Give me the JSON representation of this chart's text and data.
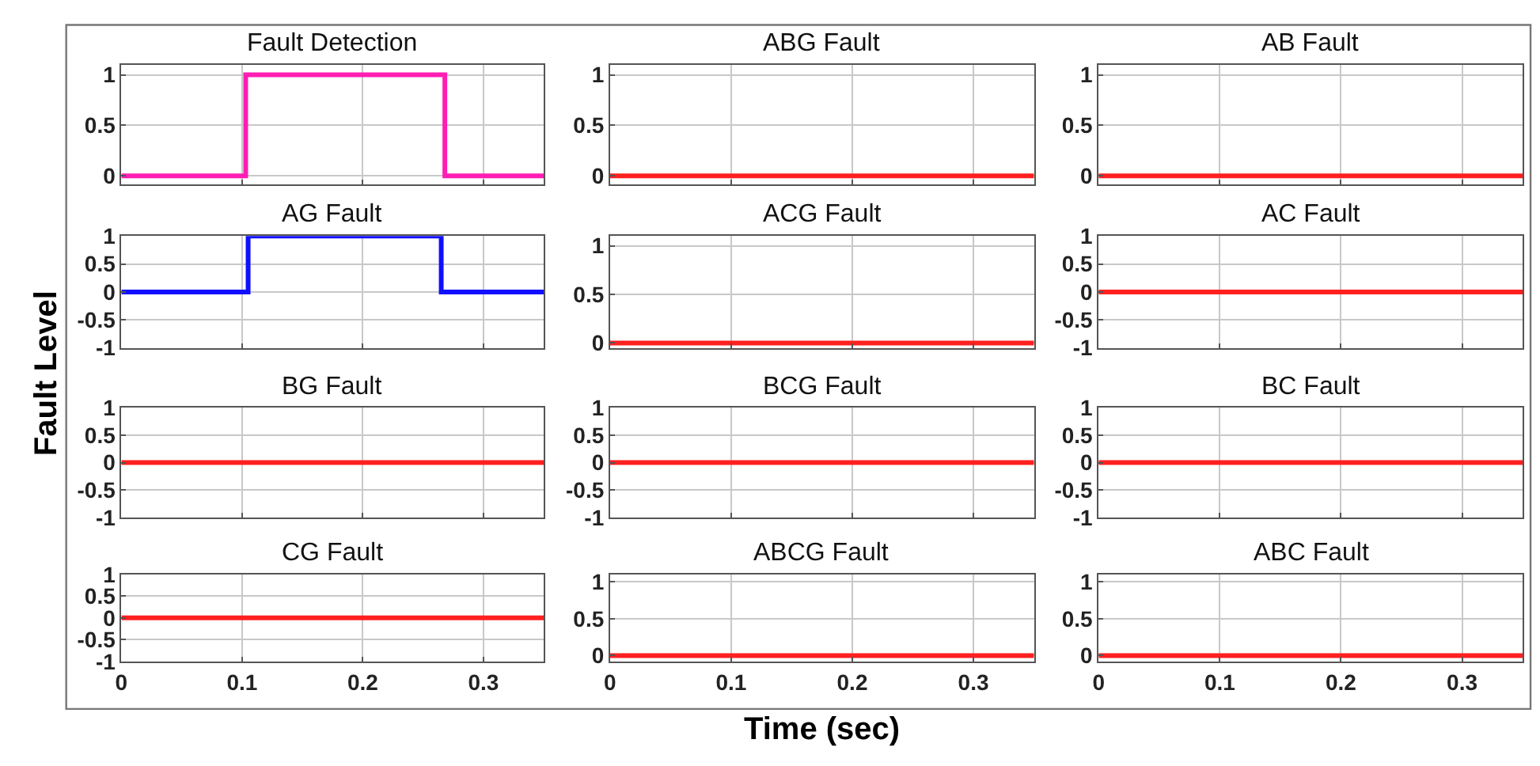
{
  "chart_data": [
    {
      "type": "step",
      "title": "Fault Detection",
      "xlim": [
        0,
        0.35
      ],
      "xticks": [
        0,
        0.1,
        0.2,
        0.3
      ],
      "ylim": [
        -0.08,
        1.1
      ],
      "yticks": [
        0,
        0.5,
        1
      ],
      "grid": true,
      "tick_labels": "y",
      "series": [
        {
          "color": "#ff1eb4",
          "x": [
            0,
            0.103,
            0.268,
            0.35
          ],
          "values": [
            0,
            1,
            0,
            0
          ]
        }
      ]
    },
    {
      "type": "step",
      "title": "ABG Fault",
      "xlim": [
        0,
        0.35
      ],
      "xticks": [
        0,
        0.1,
        0.2,
        0.3
      ],
      "ylim": [
        -0.08,
        1.1
      ],
      "yticks": [
        0,
        0.5,
        1
      ],
      "grid": true,
      "tick_labels": "y",
      "series": [
        {
          "color": "#ff2020",
          "x": [
            0,
            0.35
          ],
          "values": [
            0,
            0
          ]
        }
      ]
    },
    {
      "type": "step",
      "title": "AB Fault",
      "xlim": [
        0,
        0.35
      ],
      "xticks": [
        0,
        0.1,
        0.2,
        0.3
      ],
      "ylim": [
        -0.08,
        1.1
      ],
      "yticks": [
        0,
        0.5,
        1
      ],
      "grid": true,
      "tick_labels": "y",
      "series": [
        {
          "color": "#ff2020",
          "x": [
            0,
            0.35
          ],
          "values": [
            0,
            0
          ]
        }
      ]
    },
    {
      "type": "step",
      "title": "AG Fault",
      "ylabel": "Fault Level",
      "xlim": [
        0,
        0.35
      ],
      "xticks": [
        0,
        0.1,
        0.2,
        0.3
      ],
      "ylim": [
        -1,
        1
      ],
      "yticks": [
        -1,
        -0.5,
        0,
        0.5,
        1
      ],
      "grid": true,
      "tick_labels": "y",
      "series": [
        {
          "color": "#1010ff",
          "x": [
            0,
            0.105,
            0.265,
            0.35
          ],
          "values": [
            0,
            1,
            0,
            0
          ]
        }
      ]
    },
    {
      "type": "step",
      "title": "ACG Fault",
      "xlim": [
        0,
        0.35
      ],
      "xticks": [
        0,
        0.1,
        0.2,
        0.3
      ],
      "ylim": [
        -0.05,
        1.1
      ],
      "yticks": [
        0,
        0.5,
        1
      ],
      "grid": true,
      "tick_labels": "y",
      "series": [
        {
          "color": "#ff2020",
          "x": [
            0,
            0.35
          ],
          "values": [
            0,
            0
          ]
        }
      ]
    },
    {
      "type": "step",
      "title": "AC Fault",
      "xlim": [
        0,
        0.35
      ],
      "xticks": [
        0,
        0.1,
        0.2,
        0.3
      ],
      "ylim": [
        -1,
        1
      ],
      "yticks": [
        -1,
        -0.5,
        0,
        0.5,
        1
      ],
      "grid": true,
      "tick_labels": "y",
      "series": [
        {
          "color": "#ff2020",
          "x": [
            0,
            0.35
          ],
          "values": [
            0,
            0
          ]
        }
      ]
    },
    {
      "type": "step",
      "title": "BG Fault",
      "xlim": [
        0,
        0.35
      ],
      "xticks": [
        0,
        0.1,
        0.2,
        0.3
      ],
      "ylim": [
        -1,
        1
      ],
      "yticks": [
        -1,
        -0.5,
        0,
        0.5,
        1
      ],
      "grid": true,
      "tick_labels": "y",
      "series": [
        {
          "color": "#ff2020",
          "x": [
            0,
            0.35
          ],
          "values": [
            0,
            0
          ]
        }
      ]
    },
    {
      "type": "step",
      "title": "BCG Fault",
      "xlim": [
        0,
        0.35
      ],
      "xticks": [
        0,
        0.1,
        0.2,
        0.3
      ],
      "ylim": [
        -1,
        1
      ],
      "yticks": [
        -1,
        -0.5,
        0,
        0.5,
        1
      ],
      "grid": true,
      "tick_labels": "y",
      "series": [
        {
          "color": "#ff2020",
          "x": [
            0,
            0.35
          ],
          "values": [
            0,
            0
          ]
        }
      ]
    },
    {
      "type": "step",
      "title": "BC Fault",
      "xlim": [
        0,
        0.35
      ],
      "xticks": [
        0,
        0.1,
        0.2,
        0.3
      ],
      "ylim": [
        -1,
        1
      ],
      "yticks": [
        -1,
        -0.5,
        0,
        0.5,
        1
      ],
      "grid": true,
      "tick_labels": "y",
      "series": [
        {
          "color": "#ff2020",
          "x": [
            0,
            0.35
          ],
          "values": [
            0,
            0
          ]
        }
      ]
    },
    {
      "type": "step",
      "title": "CG Fault",
      "xlim": [
        0,
        0.35
      ],
      "xticks": [
        0,
        0.1,
        0.2,
        0.3
      ],
      "ylim": [
        -1,
        1
      ],
      "yticks": [
        -1,
        -0.5,
        0,
        0.5,
        1
      ],
      "grid": true,
      "series": [
        {
          "color": "#ff2020",
          "x": [
            0,
            0.35
          ],
          "values": [
            0,
            0
          ]
        }
      ]
    },
    {
      "type": "step",
      "title": "ABCG Fault",
      "xlabel": "Time (sec)",
      "xlim": [
        0,
        0.35
      ],
      "xticks": [
        0,
        0.1,
        0.2,
        0.3
      ],
      "ylim": [
        -0.08,
        1.1
      ],
      "yticks": [
        0,
        0.5,
        1
      ],
      "grid": true,
      "series": [
        {
          "color": "#ff2020",
          "x": [
            0,
            0.35
          ],
          "values": [
            0,
            0
          ]
        }
      ]
    },
    {
      "type": "step",
      "title": "ABC Fault",
      "xlim": [
        0,
        0.35
      ],
      "xticks": [
        0,
        0.1,
        0.2,
        0.3
      ],
      "ylim": [
        -0.08,
        1.1
      ],
      "yticks": [
        0,
        0.5,
        1
      ],
      "grid": true,
      "series": [
        {
          "color": "#ff2020",
          "x": [
            0,
            0.35
          ],
          "values": [
            0,
            0
          ]
        }
      ]
    }
  ]
}
